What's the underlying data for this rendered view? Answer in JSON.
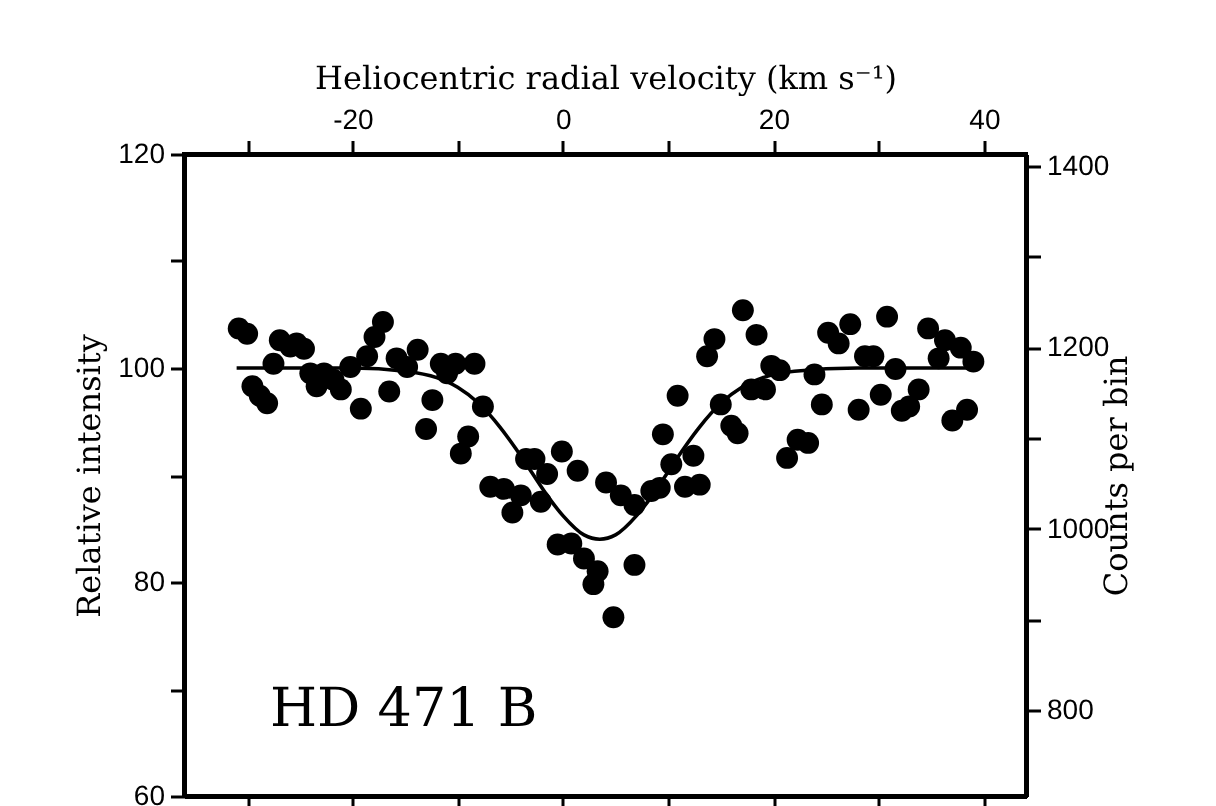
{
  "chart_data": {
    "type": "scatter",
    "xlabel": "Heliocentric radial velocity (km s⁻¹)",
    "ylabel": "Relative intensity",
    "y2label": "Counts per bin",
    "annotations": [
      "HD 471 B"
    ],
    "xlim": [
      -36,
      44
    ],
    "xticks": [
      {
        "value": -30,
        "label": null
      },
      -20,
      {
        "value": -10,
        "label": null
      },
      0,
      {
        "value": 10,
        "label": null
      },
      20,
      {
        "value": 30,
        "label": null
      },
      40
    ],
    "ylim": [
      60,
      120
    ],
    "yticks": [
      60,
      {
        "value": 70,
        "label": null
      },
      80,
      {
        "value": 90,
        "label": null
      },
      100,
      {
        "value": 110,
        "label": null
      },
      120
    ],
    "y2lim": [
      705,
      1413
    ],
    "y2ticks": [
      800,
      {
        "value": 900,
        "label": null
      },
      1000,
      {
        "value": 1100,
        "label": null
      },
      1200,
      {
        "value": 1300,
        "label": null
      },
      1400
    ],
    "grid": false,
    "marker": "circle",
    "series": [
      {
        "color": "#000000",
        "x": [
          -30.8,
          -30.0,
          -29.5,
          -28.8,
          -28.1,
          -26.9,
          -27.5,
          -25.9,
          -24.6,
          -25.3,
          -24.0,
          -23.4,
          -22.7,
          -21.8,
          -21.1,
          -20.2,
          -19.2,
          -18.6,
          -17.9,
          -17.1,
          -16.5,
          -15.8,
          -14.8,
          -13.8,
          -13.0,
          -12.4,
          -11.6,
          -11.0,
          -10.2,
          -8.4,
          -7.6,
          -9.0,
          -9.7,
          -6.9,
          -5.6,
          -4.8,
          -4.0,
          -3.5,
          -2.7,
          -2.1,
          -1.5,
          -0.1,
          1.4,
          -0.5,
          0.8,
          2.0,
          3.3,
          4.1,
          2.9,
          4.8,
          6.8,
          5.5,
          6.8,
          8.4,
          9.2,
          10.3,
          11.6,
          13.0,
          12.4,
          9.5,
          10.9,
          15.0,
          16.0,
          16.6,
          13.7,
          14.4,
          17.1,
          18.4,
          17.9,
          19.2,
          19.8,
          20.6,
          21.3,
          22.3,
          23.3,
          23.9,
          24.6,
          25.2,
          26.2,
          27.3,
          28.1,
          28.7,
          29.5,
          30.2,
          30.8,
          31.6,
          32.2,
          32.9,
          33.8,
          34.7,
          35.7,
          36.3,
          37.0,
          37.8,
          38.4,
          39.0
        ],
        "values": [
          103.7,
          103.2,
          98.3,
          97.4,
          96.7,
          102.6,
          100.4,
          102.0,
          101.8,
          102.3,
          99.5,
          98.3,
          99.5,
          98.9,
          98.0,
          100.1,
          96.2,
          101.1,
          102.9,
          104.3,
          97.8,
          100.9,
          100.1,
          101.7,
          94.3,
          97.0,
          100.4,
          99.5,
          100.4,
          100.4,
          96.4,
          93.6,
          92.0,
          88.9,
          88.7,
          86.5,
          88.1,
          91.5,
          91.5,
          87.5,
          90.1,
          92.2,
          90.4,
          83.5,
          83.6,
          82.2,
          81.0,
          89.3,
          79.8,
          76.7,
          81.6,
          88.1,
          87.2,
          88.5,
          88.8,
          91.0,
          88.9,
          89.1,
          91.8,
          93.8,
          97.4,
          96.6,
          94.6,
          93.9,
          101.1,
          102.7,
          105.4,
          103.1,
          98.0,
          98.0,
          100.2,
          99.8,
          91.6,
          93.3,
          93.0,
          99.4,
          96.6,
          103.3,
          102.3,
          104.1,
          96.1,
          101.1,
          101.1,
          97.5,
          104.8,
          99.9,
          96.0,
          96.4,
          98.0,
          103.7,
          100.9,
          102.6,
          95.1,
          101.9,
          96.1,
          100.6
        ]
      },
      {
        "type": "line",
        "color": "#000000",
        "line_style": "solid",
        "marker": "none",
        "x": [
          -31,
          -20,
          -15,
          -12,
          -10,
          -8,
          -6,
          -4.5,
          -3,
          -1.5,
          0,
          2,
          3.5,
          5,
          7,
          8.5,
          10,
          11.5,
          13,
          15,
          17,
          19,
          22,
          28,
          39
        ],
        "values": [
          100,
          100,
          99.7,
          99.1,
          98.2,
          96.7,
          94.5,
          92.5,
          90.3,
          88.1,
          86.2,
          84.4,
          84,
          84.4,
          86.2,
          88.1,
          90.3,
          92.5,
          94.5,
          96.7,
          98.2,
          99.1,
          99.7,
          100,
          100
        ]
      }
    ]
  }
}
